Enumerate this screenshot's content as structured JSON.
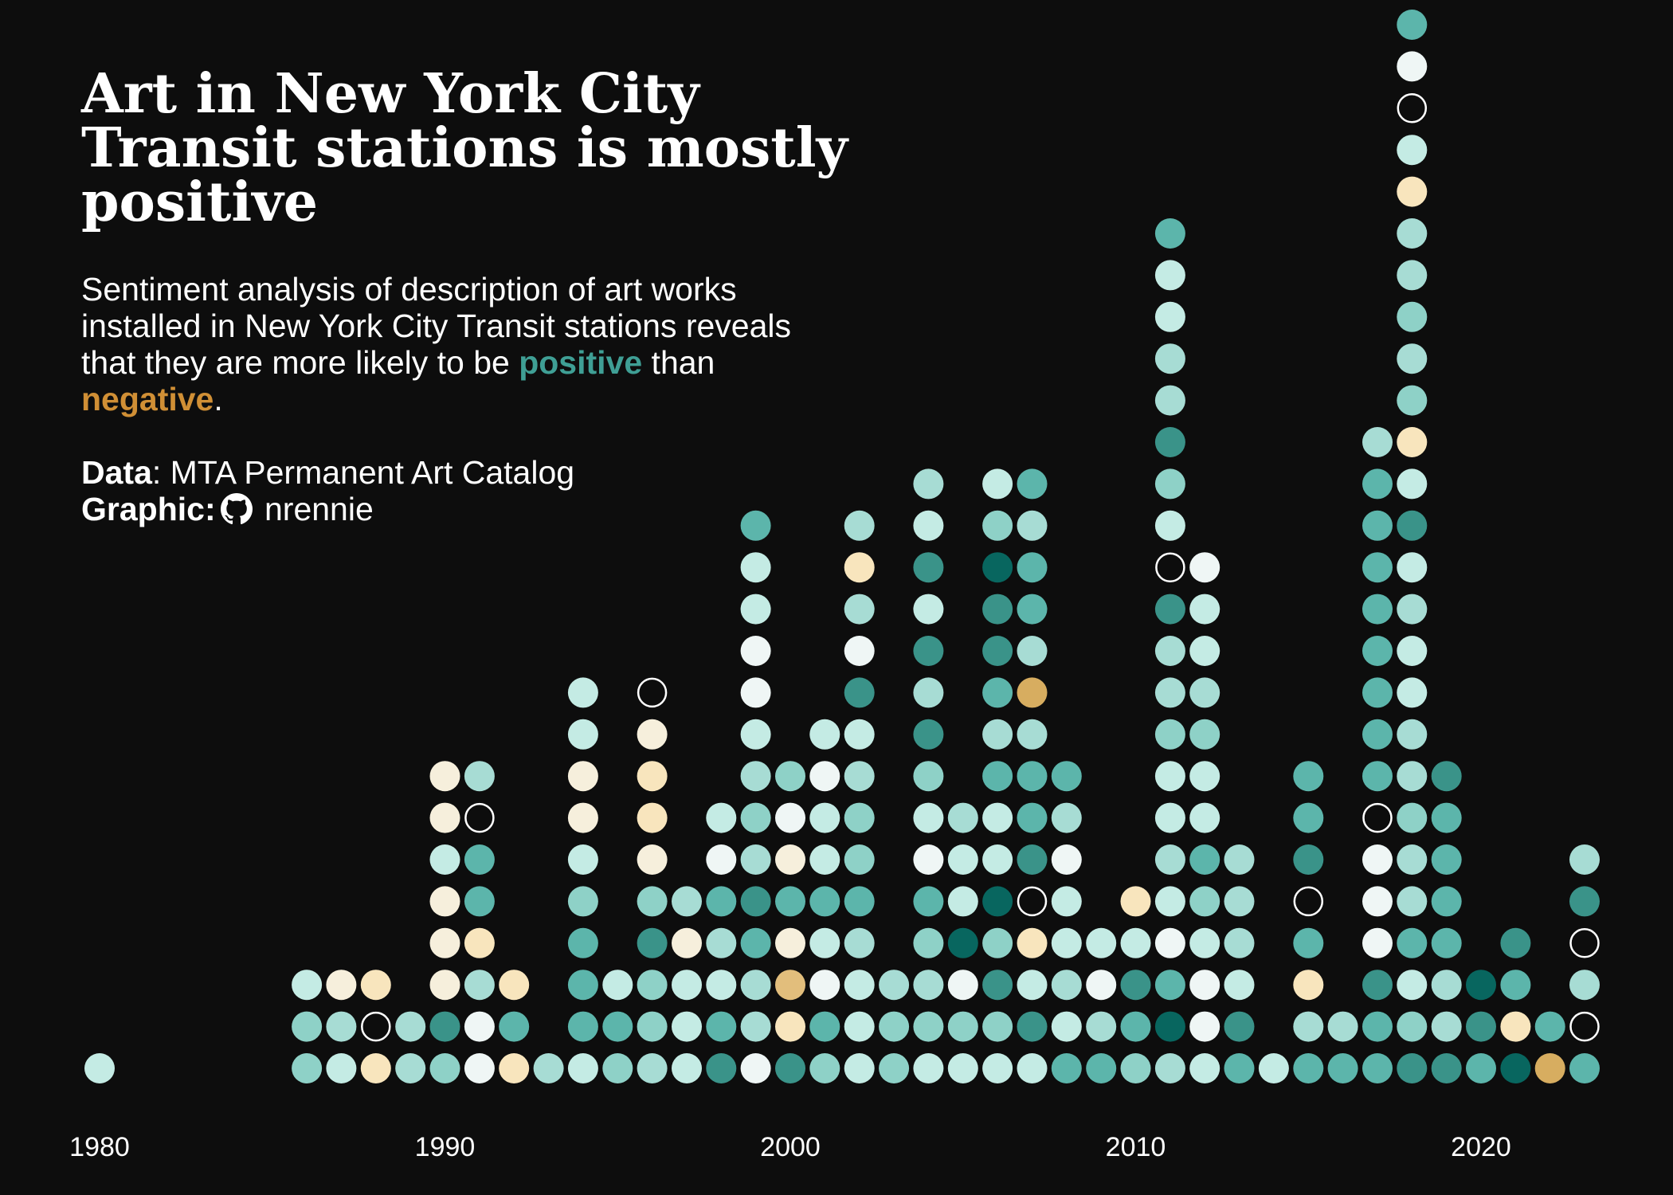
{
  "title_lines": [
    "Art in New York City",
    "Transit stations is mostly",
    "positive"
  ],
  "subtitle": {
    "line1": "Sentiment analysis of description of art works",
    "line2": "installed in New York City Transit stations reveals",
    "line3_pre": "that they are more likely to be ",
    "positive_word": "positive",
    "line3_post": " than",
    "negative_word": "negative",
    "end_punct": "."
  },
  "caption": {
    "data_label": "Data",
    "data_value": ": MTA Permanent Art Catalog",
    "graphic_label": "Graphic",
    "graphic_sep": ":",
    "github_icon": "github-icon",
    "graphic_value": " nrennie"
  },
  "colors": {
    "background": "#0d0d0d",
    "positive": "#3f9f95",
    "negative": "#d08f35",
    "palette": {
      "C": "#c4ebe4",
      "M": "#a7dcd4",
      "T": "#8ed1c7",
      "G": "#5cb5ab",
      "D": "#3a9389",
      "K": "#08665f",
      "W": "#eff6f5",
      "P": "#f6efdc",
      "Y": "#f8e5bd",
      "O": "#e2be7c",
      "N": "#d7ad60",
      "E": "outline"
    }
  },
  "chart_data": {
    "type": "dot-stack",
    "x_ticks": [
      1980,
      1990,
      2000,
      2010,
      2020
    ],
    "x_range": [
      1980,
      2023
    ],
    "color_scale_note": "",
    "columns": [
      {
        "year": 1980,
        "dots": "C"
      },
      {
        "year": 1986,
        "dots": "TTC"
      },
      {
        "year": 1987,
        "dots": "CMP"
      },
      {
        "year": 1988,
        "dots": "YEY"
      },
      {
        "year": 1989,
        "dots": "MM"
      },
      {
        "year": 1990,
        "dots": "TDPPPCPP"
      },
      {
        "year": 1991,
        "dots": "WWMYGGEM"
      },
      {
        "year": 1992,
        "dots": "YGY"
      },
      {
        "year": 1993,
        "dots": "M"
      },
      {
        "year": 1994,
        "dots": "CGGGTCPPCC"
      },
      {
        "year": 1995,
        "dots": "TGC"
      },
      {
        "year": 1996,
        "dots": "MTTDTPYYPE"
      },
      {
        "year": 1997,
        "dots": "CCCPM"
      },
      {
        "year": 1998,
        "dots": "DGCMGWC"
      },
      {
        "year": 1999,
        "dots": "WMMGDMTMCWWCCG"
      },
      {
        "year": 2000,
        "dots": "DYOPGPWT"
      },
      {
        "year": 2001,
        "dots": "TGWCGCCWC"
      },
      {
        "year": 2002,
        "dots": "CCCMGTTMCDWMYM"
      },
      {
        "year": 2003,
        "dots": "TTM"
      },
      {
        "year": 2004,
        "dots": "CTMTGWCTDMDCDCM"
      },
      {
        "year": 2005,
        "dots": "CTWKCCM"
      },
      {
        "year": 2006,
        "dots": "CTDTKCCGMGDDKTC"
      },
      {
        "year": 2007,
        "dots": "CDCYEDGGMNMGGMG"
      },
      {
        "year": 2008,
        "dots": "GCMCCWMG"
      },
      {
        "year": 2009,
        "dots": "GMWC"
      },
      {
        "year": 2010,
        "dots": "TGDCY"
      },
      {
        "year": 2011,
        "dots": "MKGWCMCCTMMDECTDMMCCG"
      },
      {
        "year": 2012,
        "dots": "CWWCTGCCTMCCW"
      },
      {
        "year": 2013,
        "dots": "GDCMMM"
      },
      {
        "year": 2014,
        "dots": "C"
      },
      {
        "year": 2015,
        "dots": "GMYGEDGG"
      },
      {
        "year": 2016,
        "dots": "GM"
      },
      {
        "year": 2017,
        "dots": "GGDWWWEGGGGGGGGM"
      },
      {
        "year": 2018,
        "dots": "DTCGMMTMMCCMCDCYTMTMMYCEWG"
      },
      {
        "year": 2019,
        "dots": "DMMGGGGD"
      },
      {
        "year": 2020,
        "dots": "GDK"
      },
      {
        "year": 2021,
        "dots": "KYGD"
      },
      {
        "year": 2022,
        "dots": "NG"
      },
      {
        "year": 2023,
        "dots": "GEMEDM"
      }
    ]
  }
}
